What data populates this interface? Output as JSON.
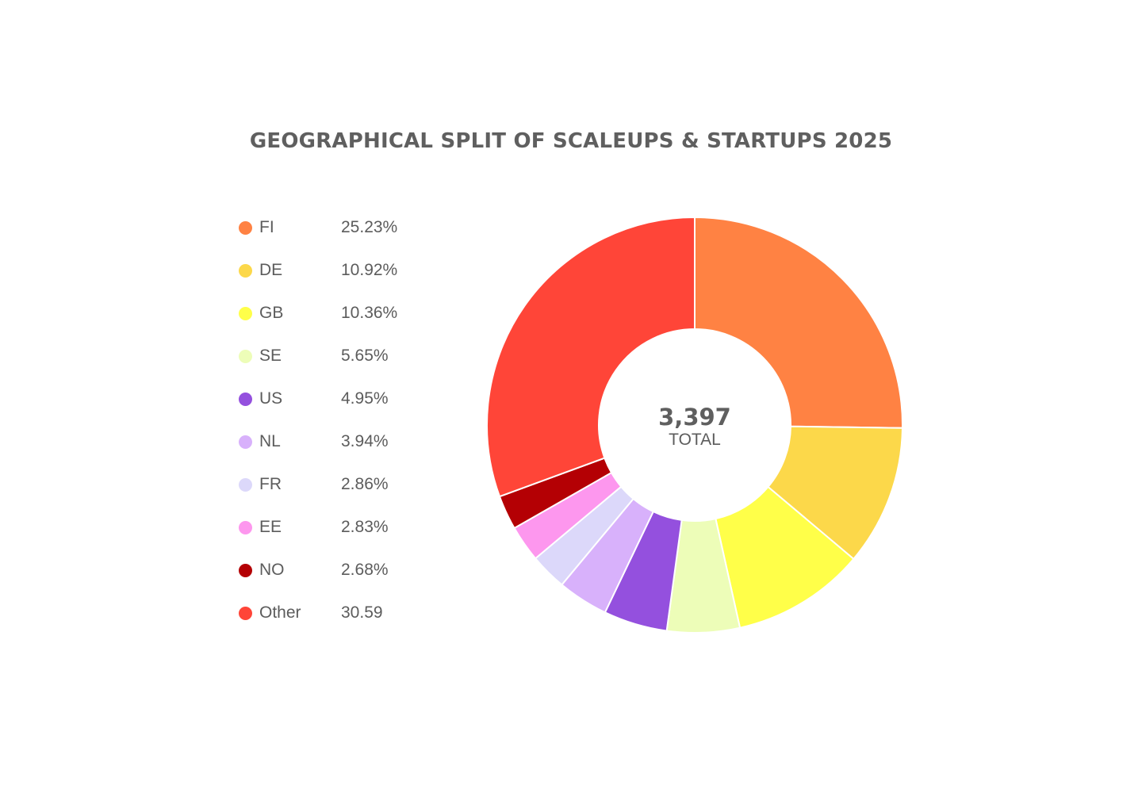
{
  "chart_data": {
    "type": "pie",
    "title": "GEOGRAPHICAL SPLIT OF SCALEUPS & STARTUPS 2025",
    "total": "3,397",
    "total_label": "TOTAL",
    "legend_position": "left",
    "categories": [
      "FI",
      "DE",
      "GB",
      "SE",
      "US",
      "NL",
      "FR",
      "EE",
      "NO",
      "Other"
    ],
    "values": [
      25.23,
      10.92,
      10.36,
      5.65,
      4.95,
      3.94,
      2.86,
      2.83,
      2.68,
      30.59
    ],
    "value_labels": [
      "25.23%",
      "10.92%",
      "10.36%",
      "5.65%",
      "4.95%",
      "3.94%",
      "2.86%",
      "2.83%",
      "2.68%",
      "30.59"
    ],
    "colors": [
      "#ff8243",
      "#fcd84a",
      "#ffff49",
      "#edfdb8",
      "#9450de",
      "#d8b1fb",
      "#dcd8fa",
      "#fd97ee",
      "#b40004",
      "#ff4538"
    ]
  }
}
